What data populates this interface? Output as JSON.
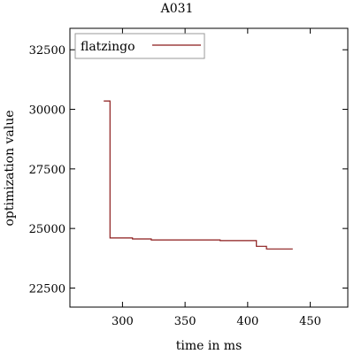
{
  "chart_data": {
    "type": "line",
    "title": "A031",
    "xlabel": "time in ms",
    "ylabel": "optimization value",
    "xlim": [
      258,
      480
    ],
    "ylim": [
      21700,
      33400
    ],
    "xticks": [
      300,
      350,
      400,
      450
    ],
    "yticks": [
      22500,
      25000,
      27500,
      30000,
      32500
    ],
    "xtick_labels": [
      "300",
      "350",
      "400",
      "450"
    ],
    "ytick_labels": [
      "22500",
      "25000",
      "27500",
      "30000",
      "32500"
    ],
    "grid": false,
    "legend_position": "top-left",
    "series": [
      {
        "name": "flatzingo",
        "color": "#8b1a1a",
        "step": true,
        "x": [
          285,
          290,
          308,
          323,
          378,
          407,
          415,
          436
        ],
        "y": [
          30350,
          24600,
          24560,
          24520,
          24490,
          24250,
          24140,
          24140
        ]
      }
    ]
  }
}
